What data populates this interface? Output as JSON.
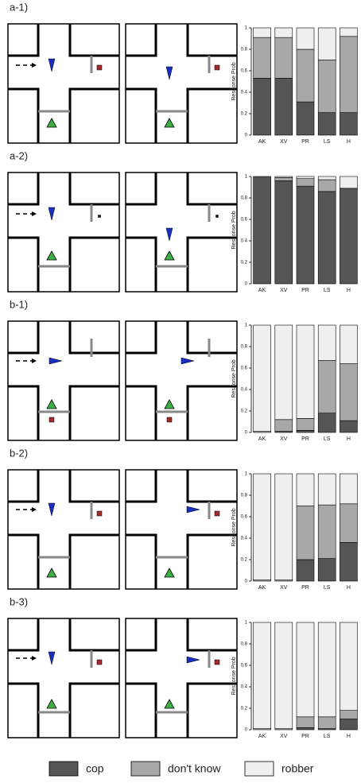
{
  "chart_data": [
    {
      "type": "stacked_bar",
      "title": "a-1)",
      "ylabel": "Response Prob",
      "categories": [
        "AK",
        "XV",
        "PR",
        "LS",
        "H"
      ],
      "ylim": [
        0,
        1
      ],
      "yticks": [
        0,
        0.2,
        0.4,
        0.6,
        0.8,
        1
      ],
      "series": [
        {
          "name": "cop",
          "color": "#555555",
          "values": [
            0.53,
            0.53,
            0.31,
            0.21,
            0.21
          ]
        },
        {
          "name": "don't know",
          "color": "#a8a8a8",
          "values": [
            0.38,
            0.38,
            0.49,
            0.49,
            0.71
          ]
        },
        {
          "name": "robber",
          "color": "#efefef",
          "values": [
            0.09,
            0.09,
            0.2,
            0.3,
            0.08
          ]
        }
      ]
    },
    {
      "type": "stacked_bar",
      "title": "a-2)",
      "ylabel": "Response Prob",
      "categories": [
        "AK",
        "XV",
        "PR",
        "LS",
        "H"
      ],
      "ylim": [
        0,
        1
      ],
      "yticks": [
        0,
        0.2,
        0.4,
        0.6,
        0.8,
        1
      ],
      "series": [
        {
          "name": "cop",
          "color": "#555555",
          "values": [
            1,
            0.96,
            0.91,
            0.86,
            0.89
          ]
        },
        {
          "name": "don't know",
          "color": "#a8a8a8",
          "values": [
            0,
            0.03,
            0.07,
            0.11,
            0
          ]
        },
        {
          "name": "robber",
          "color": "#efefef",
          "values": [
            0,
            0.01,
            0.02,
            0.03,
            0.11
          ]
        }
      ]
    },
    {
      "type": "stacked_bar",
      "title": "b-1)",
      "ylabel": "Response Prob",
      "categories": [
        "AK",
        "XV",
        "PR",
        "LS",
        "H"
      ],
      "ylim": [
        0,
        1
      ],
      "yticks": [
        0,
        0.2,
        0.4,
        0.6,
        0.8,
        1
      ],
      "series": [
        {
          "name": "cop",
          "color": "#555555",
          "values": [
            0,
            0.01,
            0.02,
            0.18,
            0.11
          ]
        },
        {
          "name": "don't know",
          "color": "#a8a8a8",
          "values": [
            0.01,
            0.11,
            0.11,
            0.49,
            0.53
          ]
        },
        {
          "name": "robber",
          "color": "#efefef",
          "values": [
            0.99,
            0.88,
            0.87,
            0.33,
            0.36
          ]
        }
      ]
    },
    {
      "type": "stacked_bar",
      "title": "b-2)",
      "ylabel": "Response Prob",
      "categories": [
        "AK",
        "XV",
        "PR",
        "LS",
        "H"
      ],
      "ylim": [
        0,
        1
      ],
      "yticks": [
        0,
        0.2,
        0.4,
        0.6,
        0.8,
        1
      ],
      "series": [
        {
          "name": "cop",
          "color": "#555555",
          "values": [
            0,
            0,
            0.2,
            0.21,
            0.36
          ]
        },
        {
          "name": "don't know",
          "color": "#a8a8a8",
          "values": [
            0.01,
            0.01,
            0.5,
            0.5,
            0.36
          ]
        },
        {
          "name": "robber",
          "color": "#efefef",
          "values": [
            0.99,
            0.99,
            0.3,
            0.29,
            0.28
          ]
        }
      ]
    },
    {
      "type": "stacked_bar",
      "title": "b-3)",
      "ylabel": "Response Prob",
      "categories": [
        "AK",
        "XV",
        "PR",
        "LS",
        "H"
      ],
      "ylim": [
        0,
        1
      ],
      "yticks": [
        0,
        0.2,
        0.4,
        0.6,
        0.8,
        1
      ],
      "series": [
        {
          "name": "cop",
          "color": "#555555",
          "values": [
            0,
            0,
            0.02,
            0.01,
            0.1
          ]
        },
        {
          "name": "don't know",
          "color": "#a8a8a8",
          "values": [
            0.01,
            0.01,
            0.1,
            0.11,
            0.08
          ]
        },
        {
          "name": "robber",
          "color": "#efefef",
          "values": [
            0.99,
            0.99,
            0.88,
            0.88,
            0.82
          ]
        }
      ]
    }
  ]
}
